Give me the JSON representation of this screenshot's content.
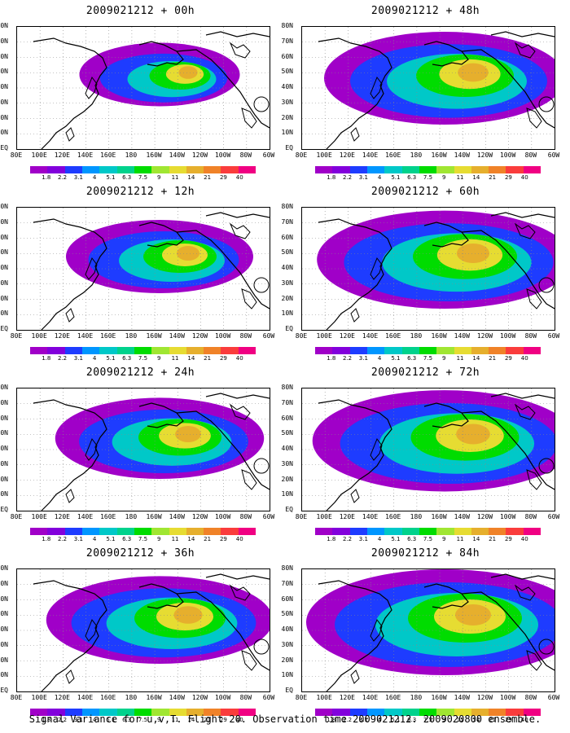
{
  "panels": [
    {
      "title": "2009021212 + 00h",
      "spread": 0.35
    },
    {
      "title": "2009021212 + 48h",
      "spread": 0.8
    },
    {
      "title": "2009021212 + 12h",
      "spread": 0.5
    },
    {
      "title": "2009021212 + 60h",
      "spread": 0.88
    },
    {
      "title": "2009021212 + 24h",
      "spread": 0.62
    },
    {
      "title": "2009021212 + 72h",
      "spread": 0.93
    },
    {
      "title": "2009021212 + 36h",
      "spread": 0.72
    },
    {
      "title": "2009021212 + 84h",
      "spread": 1.0
    }
  ],
  "y_labels": [
    "80N",
    "70N",
    "60N",
    "50N",
    "40N",
    "30N",
    "20N",
    "10N",
    "EQ"
  ],
  "x_labels": [
    "80E",
    "100E",
    "120E",
    "140E",
    "160E",
    "180",
    "160W",
    "140W",
    "120W",
    "100W",
    "80W",
    "60W"
  ],
  "colorbar": {
    "labels": [
      "1.8",
      "2.2",
      "3.1",
      "4",
      "5.1",
      "6.3",
      "7.5",
      "9",
      "11",
      "14",
      "21",
      "29",
      "40"
    ],
    "colors": [
      "#a000c8",
      "#8200dc",
      "#1e3cff",
      "#0096ff",
      "#00c8c8",
      "#00d28c",
      "#00dc00",
      "#a0e632",
      "#e6dc32",
      "#e6af2d",
      "#f08228",
      "#fa3c3c",
      "#f00082"
    ]
  },
  "footer": "Signal Variance for u,v,T. Flight 20. Observation time 2009021212. 2009020800 ensemble."
}
